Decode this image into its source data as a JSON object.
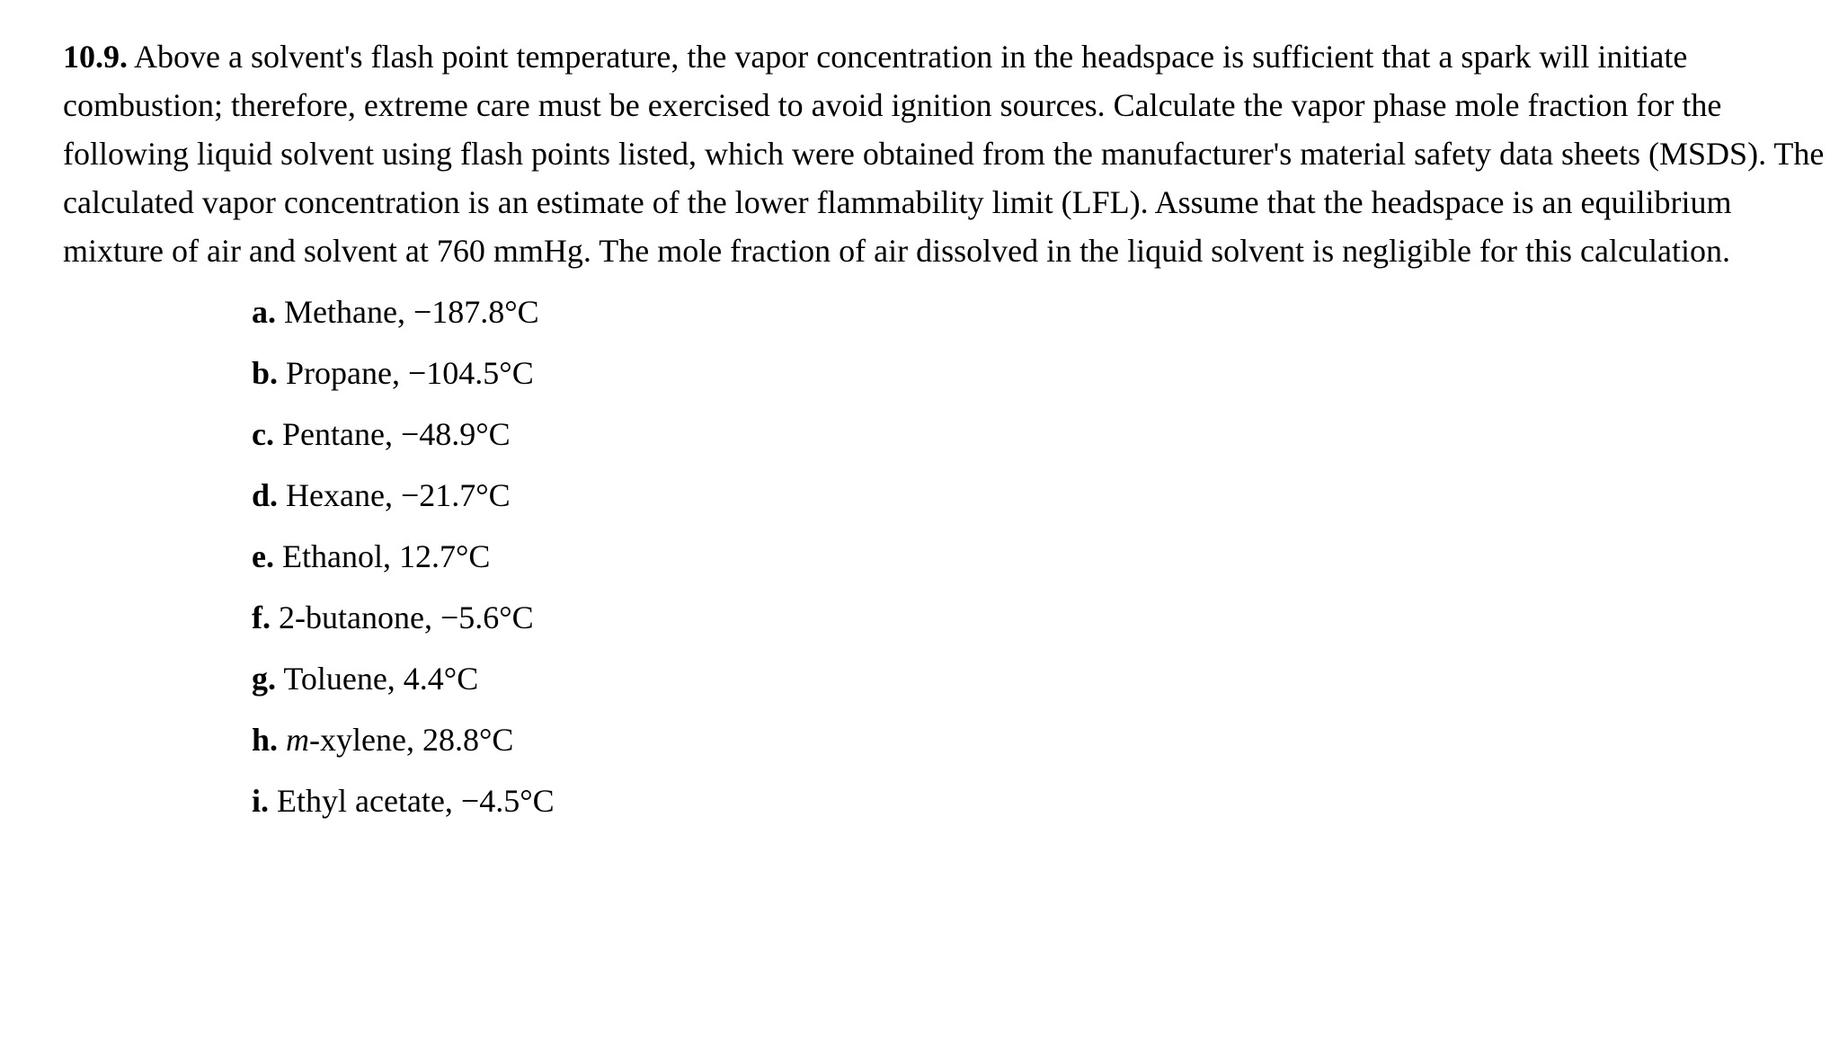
{
  "problem": {
    "number": "10.9.",
    "text": "Above a solvent's flash point temperature, the vapor concentration in the headspace is sufficient that a spark will initiate combustion; therefore, extreme care must be exercised to avoid ignition sources. Calculate the vapor phase mole fraction for the following liquid solvent using flash points listed, which were obtained from the manufacturer's material safety data sheets (MSDS). The calculated vapor concentration is an estimate of the lower flammability limit (LFL). Assume that the headspace is an equilibrium mixture of air and solvent at 760 mmHg. The mole fraction of air dissolved in the liquid solvent is negligible for this calculation."
  },
  "items": {
    "a": {
      "letter": "a.",
      "text": "Methane, −187.8°C"
    },
    "b": {
      "letter": "b.",
      "text": "Propane, −104.5°C"
    },
    "c": {
      "letter": "c.",
      "text": "Pentane, −48.9°C"
    },
    "d": {
      "letter": "d.",
      "text": "Hexane, −21.7°C"
    },
    "e": {
      "letter": "e.",
      "text": "Ethanol, 12.7°C"
    },
    "f": {
      "letter": "f.",
      "text": "2-butanone, −5.6°C"
    },
    "g": {
      "letter": "g.",
      "text": "Toluene, 4.4°C"
    },
    "h": {
      "letter": "h.",
      "prefix": "m",
      "suffix": "-xylene, 28.8°C"
    },
    "i": {
      "letter": "i.",
      "text": "Ethyl acetate, −4.5°C"
    }
  },
  "style": {
    "font_family": "Times New Roman",
    "font_size_pt": 27,
    "text_color": "#000000",
    "background_color": "#ffffff"
  }
}
